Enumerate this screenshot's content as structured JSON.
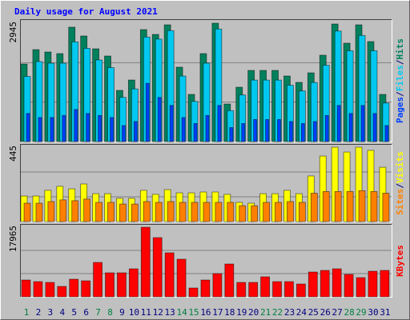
{
  "chart_data": [
    {
      "type": "bar",
      "title": "Daily usage for August 2021",
      "ylim": [
        0,
        2945
      ],
      "yticks": [
        2945
      ],
      "legend_separator": "/",
      "series": [
        {
          "name": "Hits",
          "color": "#00805c",
          "values": [
            1930,
            2288,
            2229,
            2189,
            2846,
            2627,
            2308,
            2129,
            1274,
            1532,
            2786,
            2666,
            2905,
            1851,
            1174,
            2189,
            2945,
            935,
            1353,
            1771,
            1771,
            1771,
            1632,
            1473,
            1711,
            2149,
            2925,
            2448,
            2905,
            2488,
            1174
          ]
        },
        {
          "name": "Files",
          "color": "#00c8f0",
          "values": [
            1620,
            1990,
            1950,
            1950,
            2480,
            2320,
            2030,
            1840,
            1100,
            1310,
            2600,
            2550,
            2760,
            1630,
            1000,
            1950,
            2800,
            770,
            1160,
            1530,
            1530,
            1530,
            1400,
            1260,
            1470,
            1900,
            2750,
            2260,
            2640,
            2260,
            960
          ]
        },
        {
          "name": "Pages",
          "color": "#0040ff",
          "values": [
            700,
            600,
            600,
            650,
            800,
            700,
            650,
            600,
            400,
            500,
            1450,
            1100,
            900,
            600,
            450,
            650,
            900,
            350,
            450,
            550,
            550,
            550,
            500,
            450,
            500,
            650,
            900,
            700,
            900,
            700,
            400
          ]
        }
      ]
    },
    {
      "type": "bar",
      "ylim": [
        0,
        445
      ],
      "yticks": [
        445
      ],
      "legend_separator": "/",
      "series": [
        {
          "name": "Visits",
          "color": "#ffff00",
          "values": [
            153,
            153,
            187,
            211,
            196,
            225,
            167,
            167,
            139,
            139,
            187,
            163,
            191,
            172,
            172,
            177,
            177,
            163,
            115,
            110,
            167,
            167,
            187,
            167,
            273,
            392,
            445,
            416,
            445,
            426,
            325
          ]
        },
        {
          "name": "Sites",
          "color": "#ff8000",
          "values": [
            110,
            110,
            120,
            130,
            125,
            135,
            115,
            115,
            105,
            105,
            120,
            115,
            120,
            115,
            115,
            115,
            115,
            115,
            95,
            95,
            115,
            115,
            120,
            115,
            170,
            180,
            180,
            180,
            185,
            180,
            170
          ]
        }
      ]
    },
    {
      "type": "bar",
      "ylim": [
        0,
        17965
      ],
      "yticks": [
        17965
      ],
      "categories": [
        "1",
        "2",
        "3",
        "4",
        "5",
        "6",
        "7",
        "8",
        "9",
        "10",
        "11",
        "12",
        "13",
        "14",
        "15",
        "16",
        "17",
        "18",
        "19",
        "20",
        "21",
        "22",
        "23",
        "24",
        "25",
        "26",
        "27",
        "28",
        "29",
        "30",
        "31"
      ],
      "category_colors": [
        "#008040",
        "#000080",
        "#000080",
        "#000080",
        "#000080",
        "#000080",
        "#008040",
        "#008040",
        "#000080",
        "#000080",
        "#000080",
        "#000080",
        "#000080",
        "#008040",
        "#008040",
        "#000080",
        "#000080",
        "#000080",
        "#000080",
        "#000080",
        "#008040",
        "#008040",
        "#000080",
        "#000080",
        "#000080",
        "#000080",
        "#000080",
        "#008040",
        "#008040",
        "#000080",
        "#000080"
      ],
      "series": [
        {
          "name": "KBytes",
          "color": "#ff0000",
          "values": [
            4337,
            3924,
            3717,
            2685,
            4543,
            4130,
            8880,
            6195,
            6195,
            7228,
            17965,
            15281,
            11358,
            9706,
            2272,
            4337,
            5989,
            8467,
            3717,
            3717,
            5163,
            3924,
            3924,
            3304,
            6402,
            6815,
            7228,
            5782,
            4956,
            6608,
            6815
          ]
        }
      ]
    }
  ]
}
